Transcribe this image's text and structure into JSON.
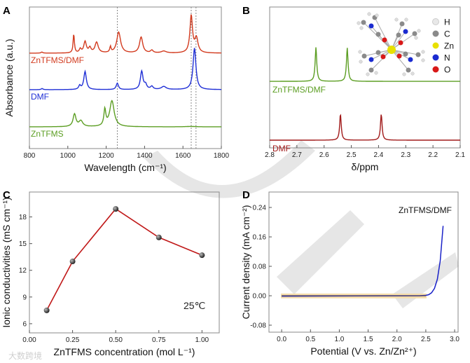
{
  "watermark": "大数跨境",
  "chart_data": [
    {
      "panel": "A",
      "type": "line",
      "xlabel": "Wavelength (cm⁻¹)",
      "ylabel": "Absorbance (a.u.)",
      "xlim": [
        800,
        1800
      ],
      "xticks": [
        "800",
        "1000",
        "1200",
        "1400",
        "1600",
        "1800"
      ],
      "ylim": [
        0,
        3.74
      ],
      "reference_lines": [
        1258,
        1643,
        1668
      ],
      "series": [
        {
          "name": "ZnTFMS/DMF",
          "color": "#d23a1e",
          "offset": 2.52,
          "peaks": [
            [
              865,
              0.03,
              5
            ],
            [
              1031,
              0.5,
              4
            ],
            [
              1065,
              0.1,
              6
            ],
            [
              1090,
              0.3,
              8
            ],
            [
              1115,
              0.13,
              7
            ],
            [
              1150,
              0.28,
              10
            ],
            [
              1222,
              0.15,
              4
            ],
            [
              1265,
              0.55,
              12
            ],
            [
              1382,
              0.42,
              10
            ],
            [
              1438,
              0.07,
              8
            ],
            [
              1500,
              0.05,
              15
            ],
            [
              1643,
              0.98,
              8
            ],
            [
              1670,
              0.38,
              10
            ]
          ]
        },
        {
          "name": "DMF",
          "color": "#1f2fd6",
          "offset": 1.556,
          "peaks": [
            [
              866,
              0.03,
              5
            ],
            [
              1062,
              0.1,
              6
            ],
            [
              1090,
              0.48,
              8
            ],
            [
              1258,
              0.17,
              7
            ],
            [
              1385,
              0.48,
              8
            ],
            [
              1405,
              0.12,
              8
            ],
            [
              1438,
              0.08,
              8
            ],
            [
              1500,
              0.08,
              15
            ],
            [
              1660,
              1.1,
              9
            ]
          ]
        },
        {
          "name": "ZnTFMS",
          "color": "#5c9e23",
          "offset": 0.574,
          "peaks": [
            [
              1035,
              0.33,
              9
            ],
            [
              1068,
              0.15,
              12
            ],
            [
              1193,
              0.43,
              6
            ],
            [
              1230,
              0.68,
              14
            ],
            [
              1640,
              0.01,
              30
            ]
          ]
        }
      ]
    },
    {
      "panel": "B",
      "type": "line",
      "xlabel": "δ/ppm",
      "xlim": [
        2.8,
        2.1
      ],
      "xticks": [
        "2.8",
        "2.7",
        "2.6",
        "2.5",
        "2.4",
        "2.3",
        "2.2",
        "2.1"
      ],
      "ylim": [
        0,
        5.03
      ],
      "series": [
        {
          "name": "ZnTFMS/DMF",
          "color": "#5c9e23",
          "offset": 2.375,
          "peaks": [
            [
              2.63,
              1.22,
              0.0035
            ],
            [
              2.515,
              1.2,
              0.0035
            ]
          ]
        },
        {
          "name": "DMF",
          "color": "#a11a1a",
          "offset": 0.275,
          "peaks": [
            [
              2.54,
              0.93,
              0.0035
            ],
            [
              2.39,
              0.93,
              0.0035
            ]
          ]
        }
      ],
      "inset_legend": [
        {
          "label": "H",
          "color": "#e8e8e8"
        },
        {
          "label": "C",
          "color": "#8a8a8a"
        },
        {
          "label": "Zn",
          "color": "#e8e000"
        },
        {
          "label": "N",
          "color": "#1a2bd0"
        },
        {
          "label": "O",
          "color": "#d81818"
        }
      ]
    },
    {
      "panel": "C",
      "type": "line",
      "xlabel": "ZnTFMS concentration (mol L⁻¹)",
      "ylabel": "Ionic conductivities (mS cm⁻¹)",
      "xlim": [
        0,
        1.1
      ],
      "ylim": [
        4.97,
        20.8
      ],
      "xticks": [
        "0.00",
        "0.25",
        "0.50",
        "0.75",
        "1.00"
      ],
      "yticks": [
        "6",
        "9",
        "12",
        "15",
        "18"
      ],
      "annotation": "25℃",
      "color": "#c01818",
      "x": [
        0.1,
        0.25,
        0.5,
        0.75,
        1.0
      ],
      "y": [
        7.5,
        13.0,
        18.9,
        15.7,
        13.7
      ]
    },
    {
      "panel": "D",
      "type": "line",
      "xlabel": "Potential (V vs. Zn/Zn²⁺)",
      "ylabel": "Current density (mA cm⁻²)",
      "xlim": [
        -0.22,
        3.06
      ],
      "ylim": [
        -0.099,
        0.282
      ],
      "xticks": [
        "0.0",
        "0.5",
        "1.0",
        "1.5",
        "2.0",
        "2.5",
        "3.0"
      ],
      "yticks": [
        "-0.08",
        "0.00",
        "0.08",
        "0.16",
        "0.24"
      ],
      "legend": "ZnTFMS/DMF",
      "color": "#1a22c8",
      "band": {
        "x": [
          0,
          2.5
        ],
        "y": [
          -0.007,
          0.006
        ],
        "color": "#f5dca8"
      },
      "points": [
        [
          0,
          -0.001
        ],
        [
          2.4,
          0.0
        ],
        [
          2.5,
          0.001
        ],
        [
          2.55,
          0.003
        ],
        [
          2.6,
          0.008
        ],
        [
          2.65,
          0.02
        ],
        [
          2.7,
          0.045
        ],
        [
          2.75,
          0.095
        ],
        [
          2.8,
          0.19
        ]
      ]
    }
  ]
}
